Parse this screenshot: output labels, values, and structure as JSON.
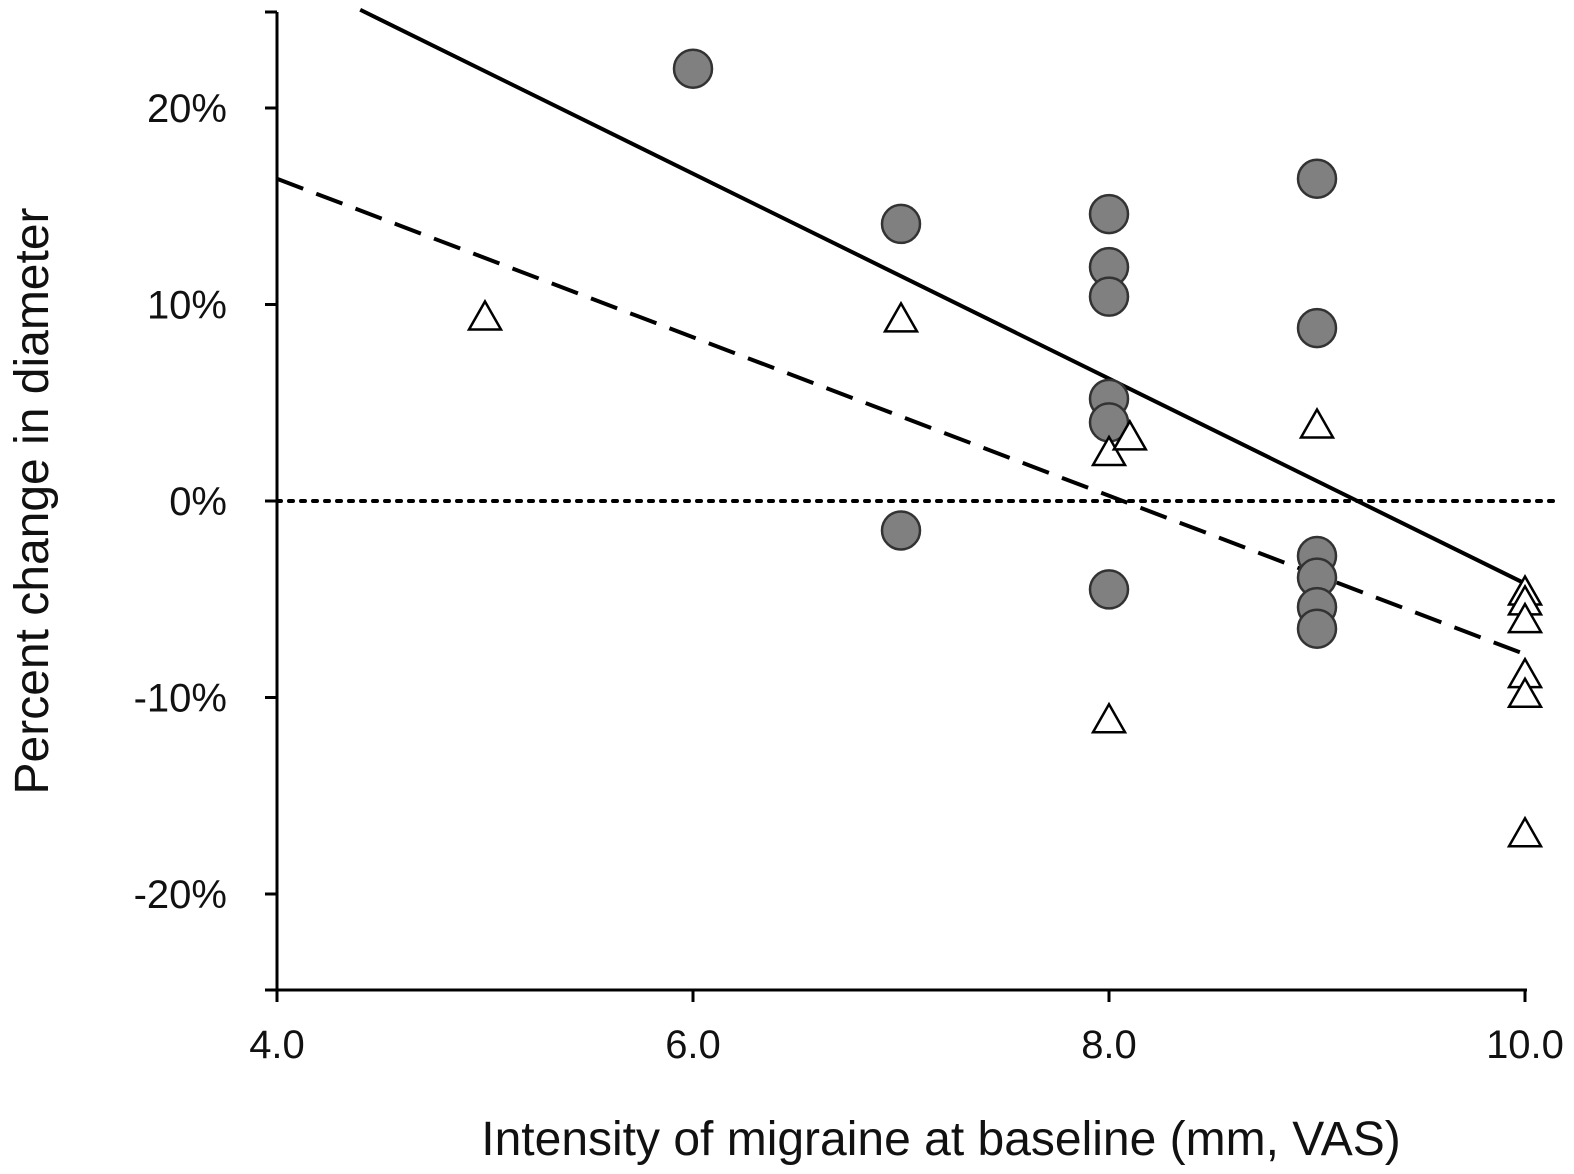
{
  "chart_data": {
    "type": "scatter",
    "title": "",
    "xlabel": "Intensity of migraine at baseline (mm, VAS)",
    "ylabel": "Percent change in diameter",
    "xlim": [
      4.0,
      10.0
    ],
    "ylim": [
      -25,
      25
    ],
    "x_ticks": [
      4.0,
      6.0,
      8.0,
      10.0
    ],
    "x_tick_labels": [
      "4.0",
      "6.0",
      "8.0",
      "10.0"
    ],
    "y_ticks": [
      20,
      10,
      0,
      -10,
      -20
    ],
    "y_tick_labels": [
      "20%",
      "10%",
      "0%",
      "-10%",
      "-20%"
    ],
    "grid": false,
    "legend": "none",
    "reference_line": {
      "y": 0,
      "style": "dotted"
    },
    "series": [
      {
        "marker": "filled-circle",
        "color": "#808080",
        "points": [
          [
            6.0,
            22.0
          ],
          [
            7.0,
            14.1
          ],
          [
            7.0,
            -1.5
          ],
          [
            8.0,
            14.6
          ],
          [
            8.0,
            11.9
          ],
          [
            8.0,
            10.4
          ],
          [
            8.0,
            5.2
          ],
          [
            8.0,
            4.0
          ],
          [
            8.0,
            -4.5
          ],
          [
            9.0,
            16.4
          ],
          [
            9.0,
            8.8
          ],
          [
            9.0,
            -2.8
          ],
          [
            9.0,
            -3.9
          ],
          [
            9.0,
            -5.4
          ],
          [
            9.0,
            -6.5
          ]
        ],
        "fit_line": {
          "style": "solid",
          "x": [
            4.4,
            10.0
          ],
          "y": [
            25.0,
            -4.2
          ]
        }
      },
      {
        "marker": "open-triangle",
        "color": "#ffffff",
        "points": [
          [
            5.0,
            9.3
          ],
          [
            7.0,
            9.2
          ],
          [
            8.0,
            2.4
          ],
          [
            8.1,
            3.2
          ],
          [
            8.0,
            -11.2
          ],
          [
            9.0,
            3.8
          ],
          [
            10.0,
            -4.7
          ],
          [
            10.0,
            -5.2
          ],
          [
            10.0,
            -6.1
          ],
          [
            10.0,
            -8.9
          ],
          [
            10.0,
            -9.9
          ],
          [
            10.0,
            -17.0
          ]
        ],
        "fit_line": {
          "style": "dashed",
          "x": [
            4.0,
            10.0
          ],
          "y": [
            16.4,
            -7.8
          ]
        }
      }
    ]
  }
}
